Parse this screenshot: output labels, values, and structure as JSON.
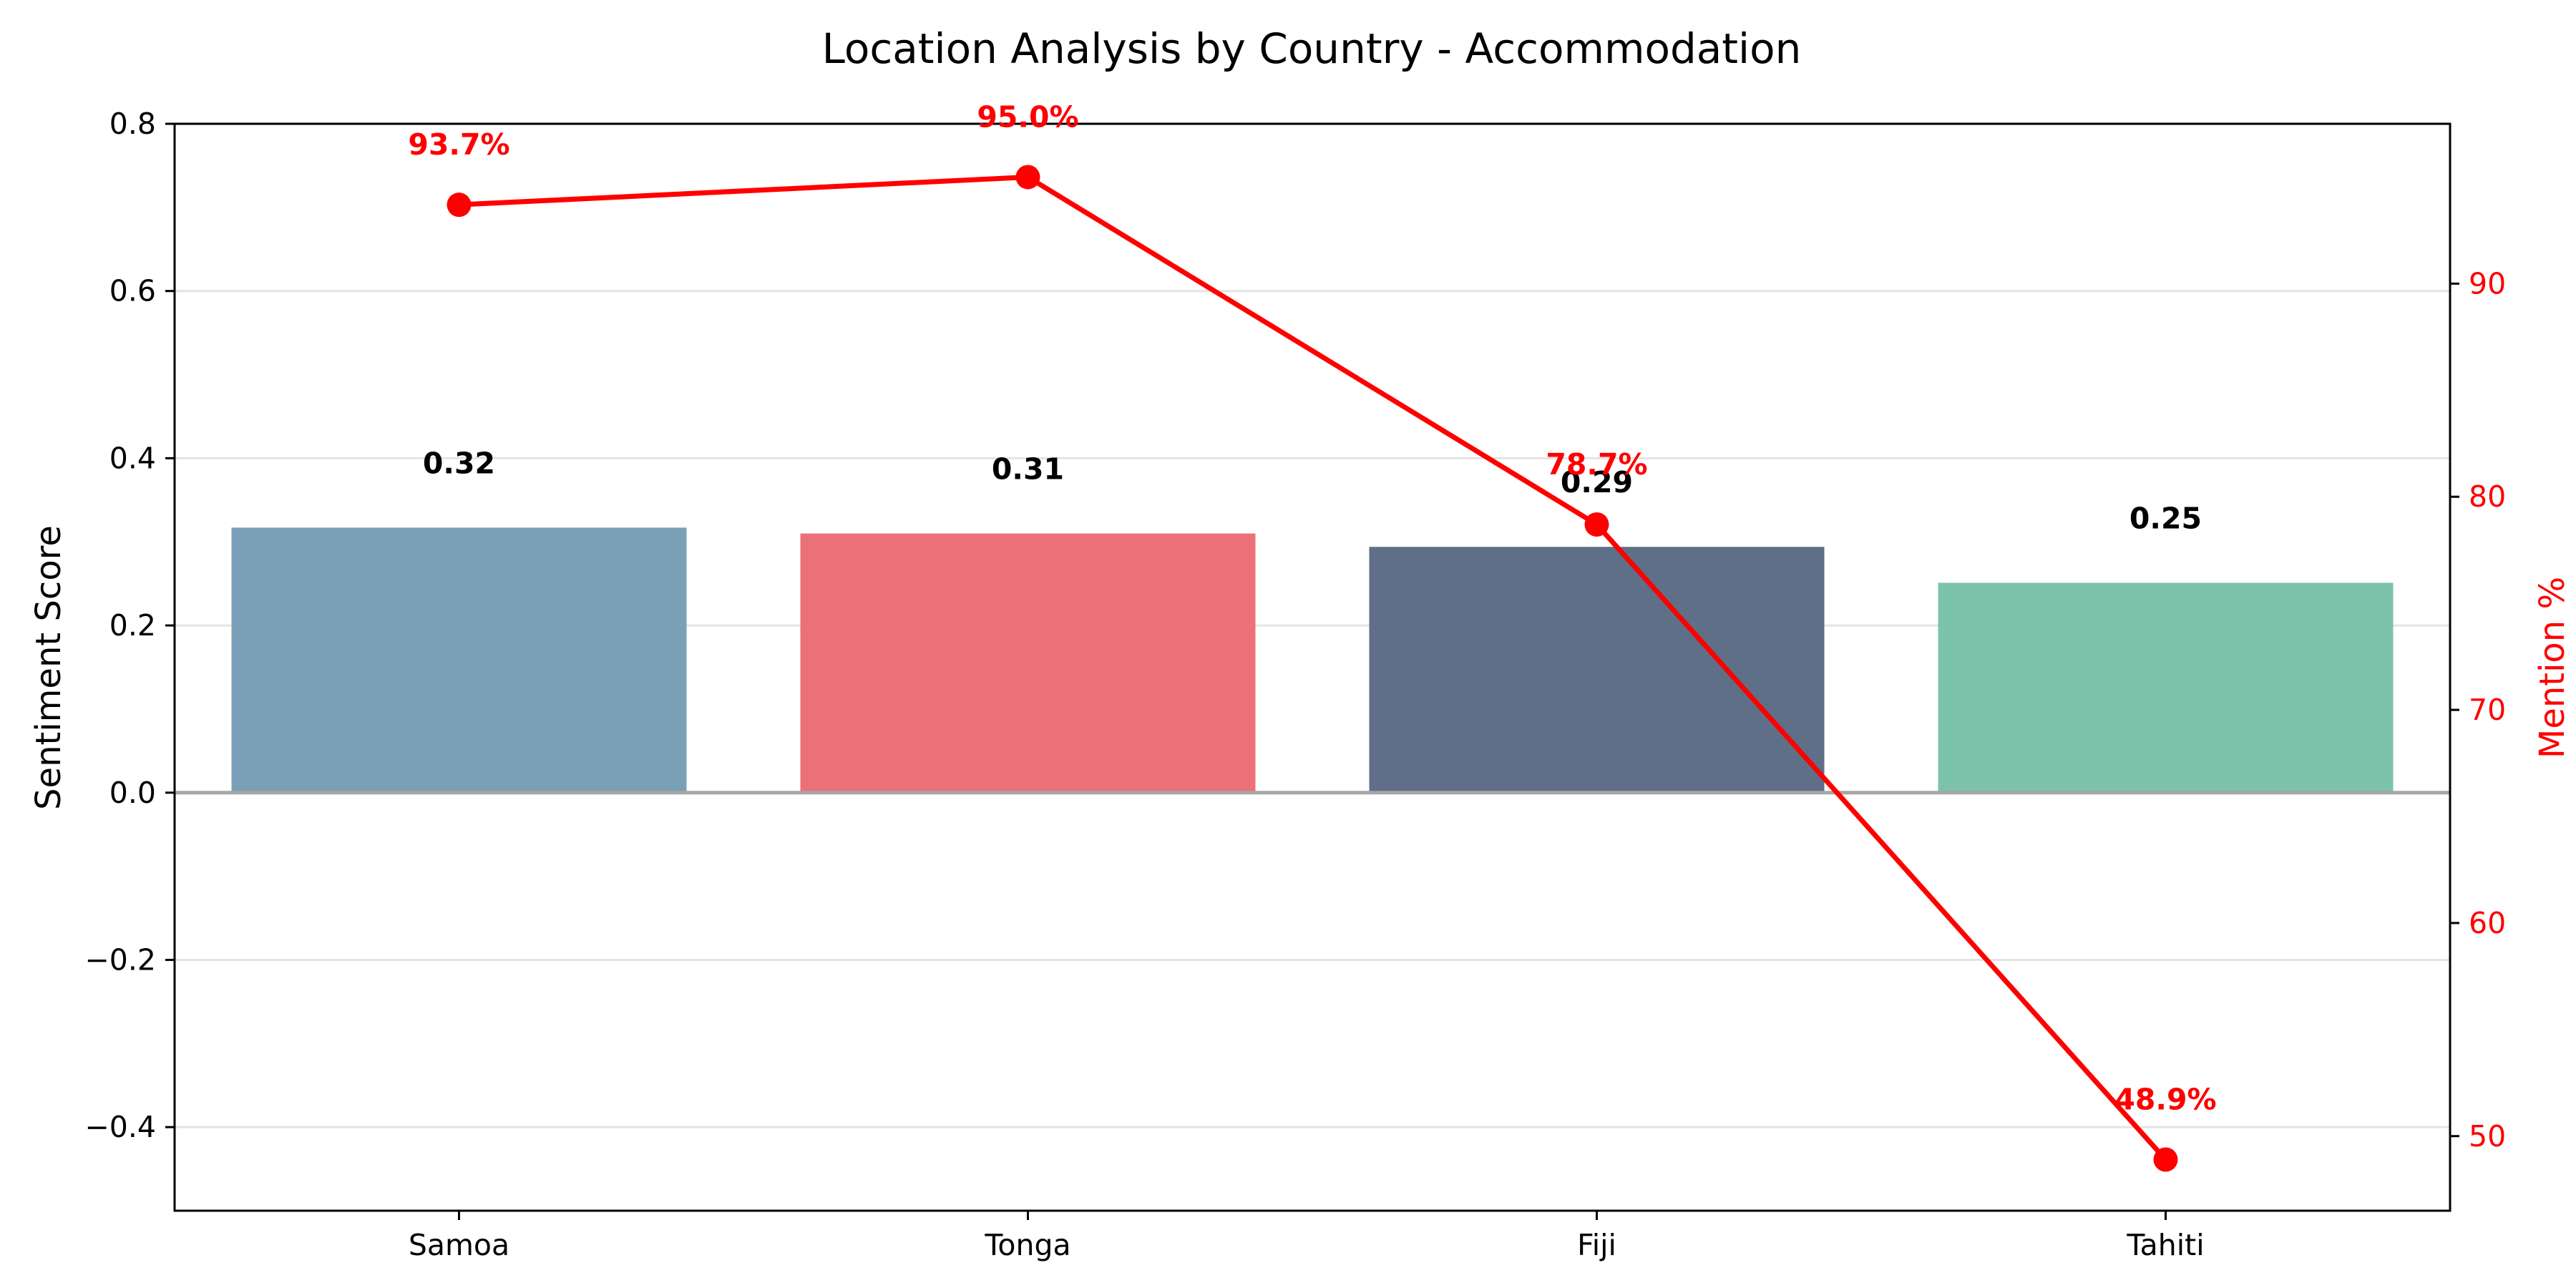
{
  "chart_data": {
    "type": "bar",
    "title": "Location Analysis by Country - Accommodation",
    "ylabel": "Sentiment Score",
    "y2label": "Mention %",
    "categories": [
      "Samoa",
      "Tonga",
      "Fiji",
      "Tahiti"
    ],
    "series": [
      {
        "type": "bar",
        "axis": "left",
        "values": [
          0.317,
          0.31,
          0.294,
          0.251
        ],
        "value_labels": [
          "0.32",
          "0.31",
          "0.29",
          "0.25"
        ],
        "colors": [
          "#7aa0b8",
          "#ec7078",
          "#5f6f88",
          "#7cc3ab"
        ]
      },
      {
        "type": "line",
        "axis": "right",
        "values": [
          93.7,
          95.0,
          78.7,
          48.9
        ],
        "value_labels": [
          "93.7%",
          "95.0%",
          "78.7%",
          "48.9%"
        ],
        "color": "#ff0000"
      }
    ],
    "ylim": [
      -0.5,
      0.8
    ],
    "yticks": [
      -0.4,
      -0.2,
      0.0,
      0.2,
      0.4,
      0.6,
      0.8
    ],
    "ytick_labels": [
      "−0.4",
      "−0.2",
      "0.0",
      "0.2",
      "0.4",
      "0.6",
      "0.8"
    ],
    "y2lim": [
      46.5,
      97.5
    ],
    "y2ticks": [
      50,
      60,
      70,
      80,
      90
    ],
    "y2tick_labels": [
      "50",
      "60",
      "70",
      "80",
      "90"
    ],
    "grid": true,
    "zero_line": true
  }
}
